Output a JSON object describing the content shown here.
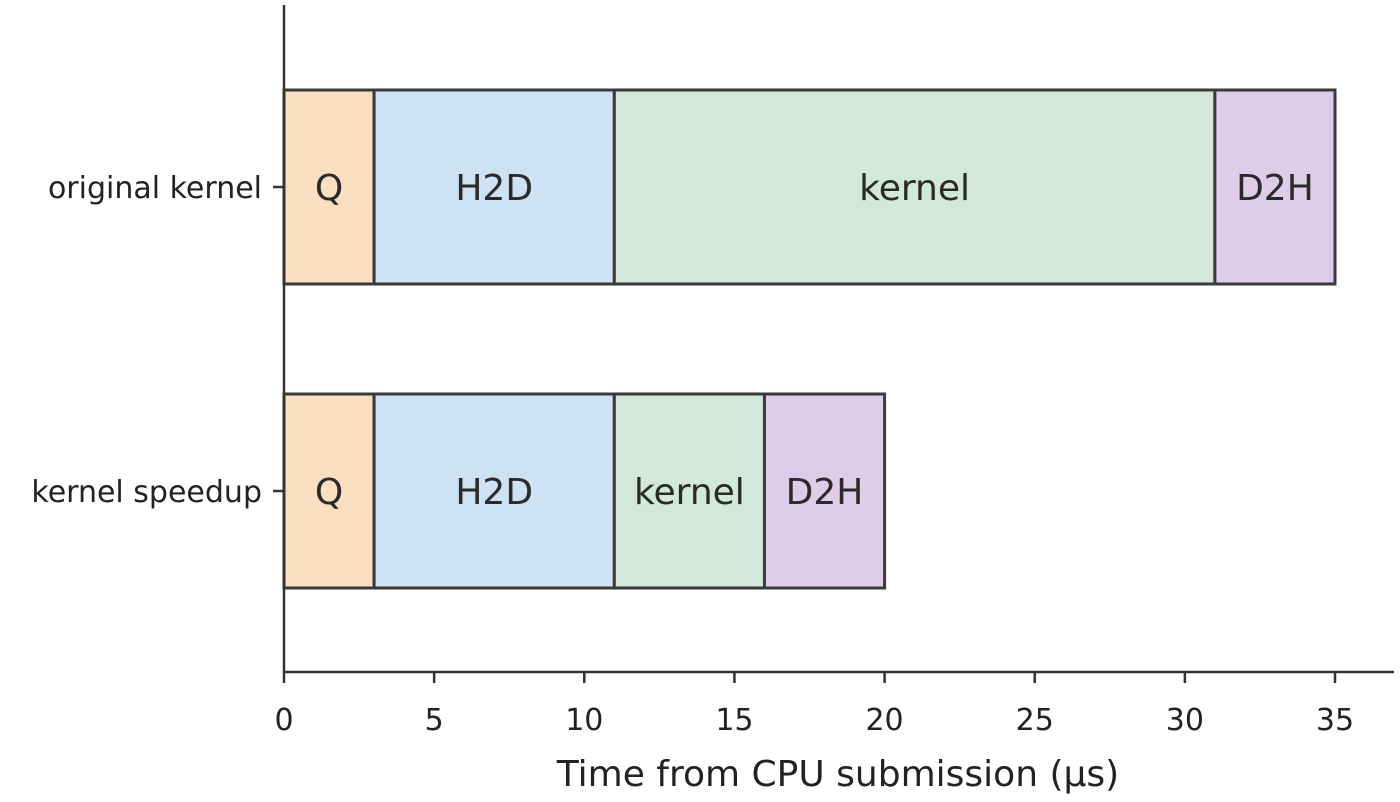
{
  "chart_data": {
    "type": "bar",
    "orientation": "horizontal",
    "stacked": true,
    "title": "",
    "xlabel": "Time from CPU submission (µs)",
    "ylabel": "",
    "xlim": [
      0,
      35
    ],
    "xticks": [
      0,
      5,
      10,
      15,
      20,
      25,
      30,
      35
    ],
    "grid": false,
    "legend": "none",
    "categories": [
      "original kernel",
      "kernel speedup"
    ],
    "rows": [
      {
        "category": "original kernel",
        "segments": [
          {
            "label": "Q",
            "start": 0,
            "end": 3,
            "color": "#f9dfc0"
          },
          {
            "label": "H2D",
            "start": 3,
            "end": 11,
            "color": "#cde2f2"
          },
          {
            "label": "kernel",
            "start": 11,
            "end": 31,
            "color": "#d2e8da"
          },
          {
            "label": "D2H",
            "start": 31,
            "end": 35,
            "color": "#decde8"
          }
        ]
      },
      {
        "category": "kernel speedup",
        "segments": [
          {
            "label": "Q",
            "start": 0,
            "end": 3,
            "color": "#f9dfc0"
          },
          {
            "label": "H2D",
            "start": 3,
            "end": 11,
            "color": "#cde2f2"
          },
          {
            "label": "kernel",
            "start": 11,
            "end": 16,
            "color": "#d2e8da"
          },
          {
            "label": "D2H",
            "start": 16,
            "end": 20,
            "color": "#decde8"
          }
        ]
      }
    ]
  }
}
